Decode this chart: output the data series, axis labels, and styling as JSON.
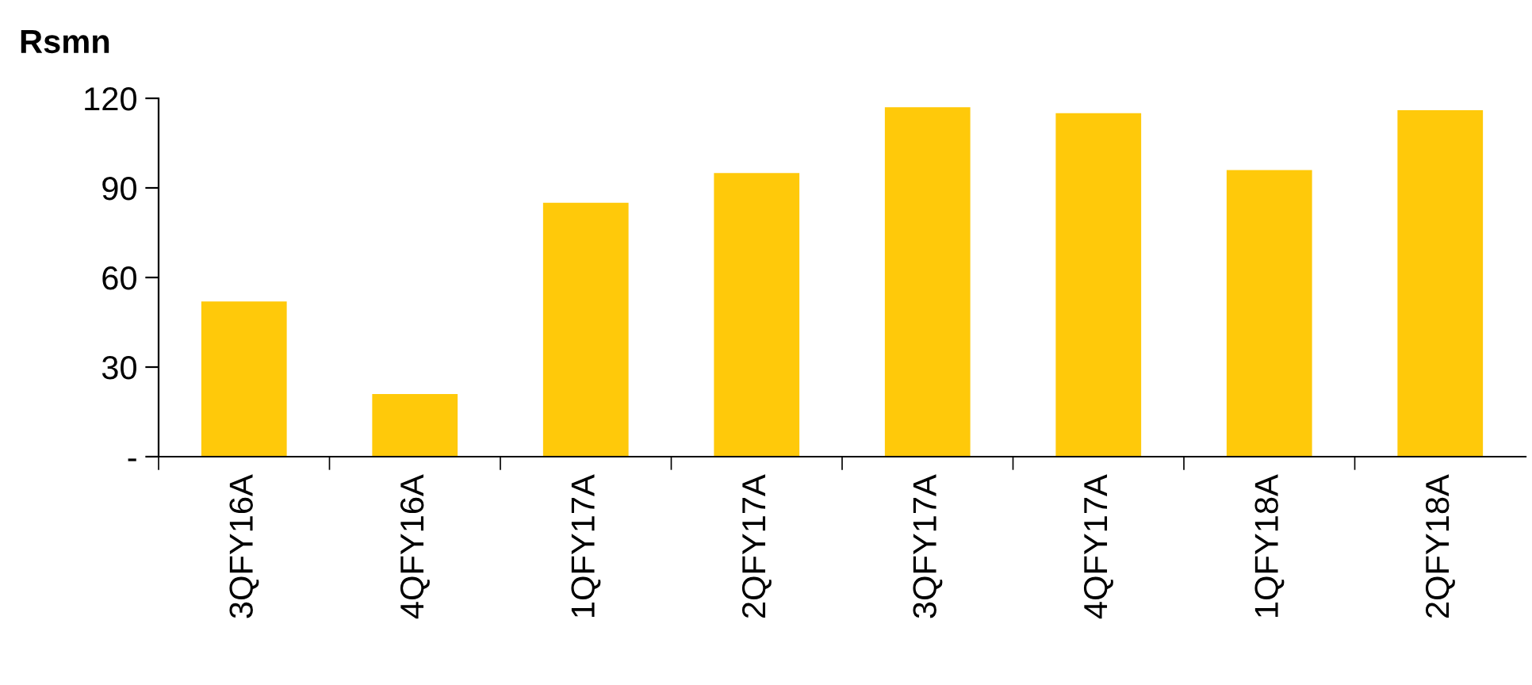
{
  "chart_data": {
    "type": "bar",
    "ylabel": "Rsmn",
    "categories": [
      "3QFY16A",
      "4QFY16A",
      "1QFY17A",
      "2QFY17A",
      "3QFY17A",
      "4QFY17A",
      "1QFY18A",
      "2QFY18A"
    ],
    "values": [
      52,
      21,
      85,
      95,
      117,
      115,
      96,
      116
    ],
    "color": "#ffc90a",
    "ylim": [
      0,
      120
    ],
    "yticks": [
      {
        "value": 0,
        "label": "-"
      },
      30,
      60,
      90,
      120
    ],
    "grid": false
  }
}
